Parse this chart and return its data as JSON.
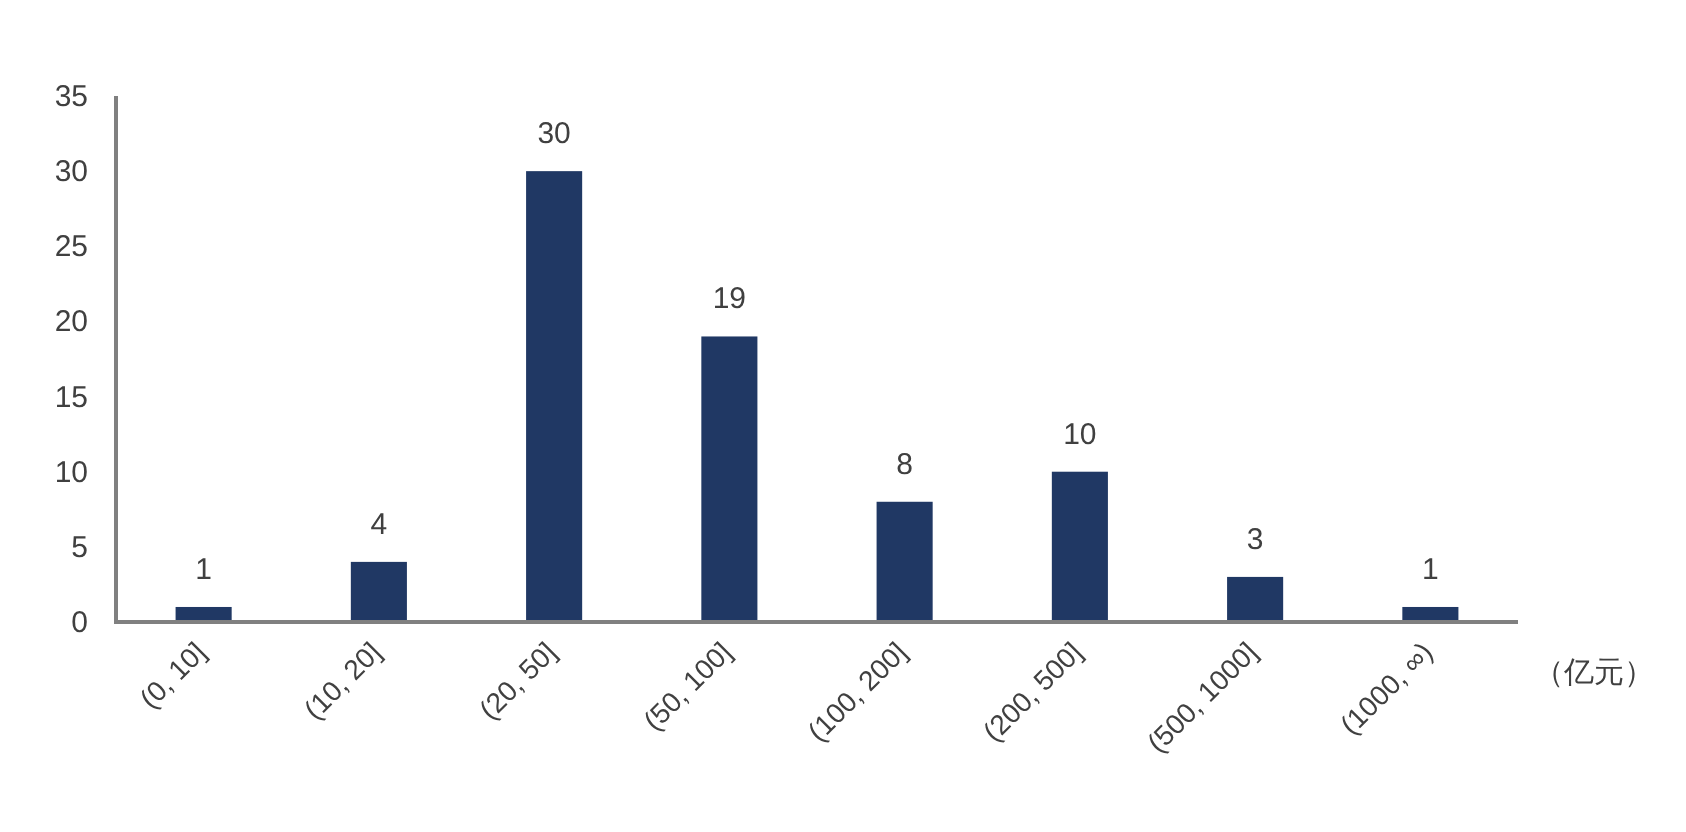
{
  "chart_data": {
    "type": "bar",
    "categories": [
      "(0, 10]",
      "(10, 20]",
      "(20, 50]",
      "(50, 100]",
      "(100, 200]",
      "(200, 500]",
      "(500, 1000]",
      "(1000, ∞)"
    ],
    "values": [
      1,
      4,
      30,
      19,
      8,
      10,
      3,
      1
    ],
    "color": "#203864",
    "xlabel": "（亿元）",
    "ylim": [
      0,
      35
    ],
    "yticks": [
      0,
      5,
      10,
      15,
      20,
      25,
      30,
      35
    ],
    "data_labels": true
  }
}
